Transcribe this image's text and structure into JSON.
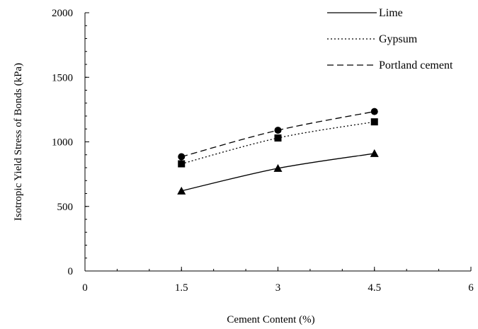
{
  "chart_data": {
    "type": "line",
    "xlabel": "Cement Content (%)",
    "ylabel": "Isotropic Yield Stress of Bonds (kPa)",
    "xlim": [
      0,
      6
    ],
    "ylim": [
      0,
      2000
    ],
    "x_ticks": [
      0,
      1.5,
      3,
      4.5,
      6
    ],
    "x_tick_labels": [
      "0",
      "1.5",
      "3",
      "4.5",
      "6"
    ],
    "y_ticks": [
      0,
      500,
      1000,
      1500,
      2000
    ],
    "y_tick_labels": [
      "0",
      "500",
      "1000",
      "1500",
      "2000"
    ],
    "x_minor_step": 0.5,
    "y_minor_step": 100,
    "grid": false,
    "legend_position": "top-right",
    "series": [
      {
        "name": "Lime",
        "line_style": "solid",
        "marker": "triangle",
        "color": "#000000",
        "x": [
          1.5,
          3,
          4.5
        ],
        "values": [
          620,
          795,
          910
        ]
      },
      {
        "name": "Gypsum",
        "line_style": "dotted",
        "marker": "square",
        "color": "#000000",
        "x": [
          1.5,
          3,
          4.5
        ],
        "values": [
          830,
          1030,
          1155
        ]
      },
      {
        "name": "Portland cement",
        "line_style": "dashed",
        "marker": "circle",
        "color": "#000000",
        "x": [
          1.5,
          3,
          4.5
        ],
        "values": [
          885,
          1090,
          1235
        ]
      }
    ]
  }
}
